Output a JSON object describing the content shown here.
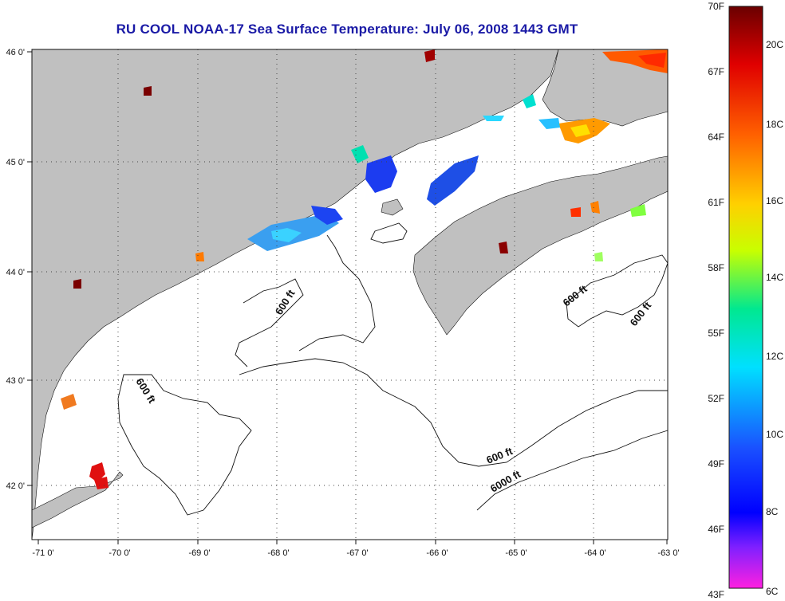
{
  "title": "RU COOL  NOAA-17  Sea Surface Temperature:  July 06, 2008 1443 GMT",
  "map": {
    "lon_ticks": [
      "-71 0'",
      "-70 0'",
      "-69 0'",
      "-68 0'",
      "-67 0'",
      "-66 0'",
      "-65 0'",
      "-64 0'",
      "-63 0'"
    ],
    "lat_ticks": [
      "46 0'",
      "45 0'",
      "44 0'",
      "43 0'",
      "42 0'"
    ],
    "depth_labels": [
      "600 ft",
      "600 ft",
      "600 ft",
      "600 ft",
      "6000 ft",
      "600 ft"
    ],
    "colors": {
      "land": "#c0c0c0",
      "water": "#ffffff",
      "grid": "#555555"
    }
  },
  "colorbar": {
    "fahrenheit_labels": [
      "70F",
      "67F",
      "64F",
      "61F",
      "58F",
      "55F",
      "52F",
      "49F",
      "46F",
      "43F"
    ],
    "celsius_labels": [
      "20C",
      "18C",
      "16C",
      "14C",
      "12C",
      "10C",
      "8C",
      "6C"
    ],
    "gradient": [
      "#7a0000",
      "#ff0000",
      "#ff8000",
      "#ffff00",
      "#00ff80",
      "#00ffff",
      "#0000ff",
      "#8000ff",
      "#ff00ff"
    ]
  }
}
